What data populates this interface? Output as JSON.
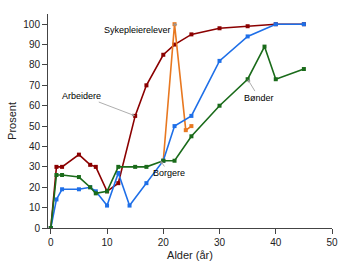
{
  "chart_data": {
    "type": "line",
    "xlabel": "Alder (år)",
    "ylabel": "Prosent",
    "xlim": [
      -0.5,
      50
    ],
    "ylim": [
      0,
      105
    ],
    "xticks": [
      0,
      10,
      20,
      30,
      40,
      50
    ],
    "yticks": [
      0,
      10,
      20,
      30,
      40,
      50,
      60,
      70,
      80,
      90,
      100
    ],
    "grid": false,
    "marker": "square",
    "series": [
      {
        "name": "Arbeidere",
        "color": "#8B0000",
        "x": [
          0,
          1,
          2,
          5,
          7,
          8,
          10,
          12,
          15,
          17,
          20,
          22,
          25,
          30,
          35,
          40,
          45
        ],
        "values": [
          0,
          30,
          30,
          36,
          31,
          30,
          18,
          22,
          55,
          70,
          85,
          90,
          95,
          98,
          99,
          100,
          100
        ]
      },
      {
        "name": "Sykepleierelever",
        "color": "#E87820",
        "x": [
          20,
          22,
          24,
          25
        ],
        "values": [
          33,
          100,
          48,
          50
        ]
      },
      {
        "name": "Borgere",
        "color": "#1E6FE8",
        "x": [
          0,
          1,
          2,
          5,
          7,
          8,
          10,
          12,
          14,
          17,
          20,
          22,
          25,
          30,
          35,
          40,
          45
        ],
        "values": [
          0,
          14,
          19,
          19,
          20,
          18,
          11,
          27,
          11,
          22,
          33,
          50,
          55,
          82,
          94,
          100,
          100
        ]
      },
      {
        "name": "Bønder",
        "color": "#1A6B1A",
        "x": [
          0,
          1,
          2,
          5,
          7,
          8,
          10,
          12,
          15,
          17,
          20,
          22,
          25,
          30,
          35,
          38,
          40,
          45
        ],
        "values": [
          0,
          26,
          26,
          25,
          20,
          17,
          18,
          30,
          30,
          30,
          33,
          33,
          45,
          60,
          73,
          89,
          73,
          78
        ]
      }
    ],
    "annotations": [
      {
        "text": "Sykepleierelever",
        "x": 22.5,
        "y": 100,
        "text_x": 15.5,
        "text_y": 97
      },
      {
        "text": "Arbeidere",
        "x": 15,
        "y": 55,
        "text_x": 5.5,
        "text_y": 65
      },
      {
        "text": "Borgere",
        "x": 19.5,
        "y": 33,
        "text_x": 21,
        "text_y": 27
      },
      {
        "text": "Bønder",
        "x": 35,
        "y": 73,
        "text_x": 37,
        "text_y": 64
      }
    ]
  }
}
